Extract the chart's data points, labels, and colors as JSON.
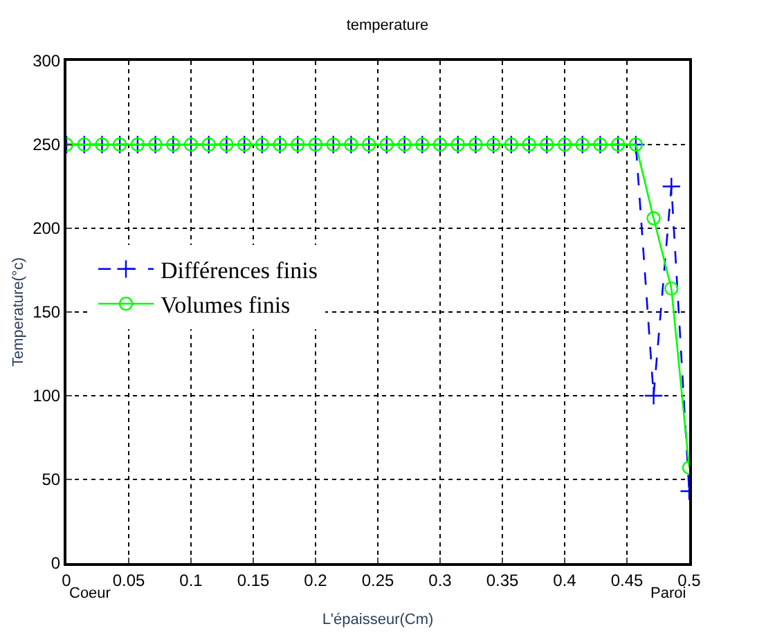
{
  "chart_data": {
    "type": "line",
    "title": "temperature",
    "xlabel": "L'épaisseur(Cm)",
    "ylabel": "Temperature(°c)",
    "x": [
      0,
      0.01429,
      0.02857,
      0.04286,
      0.05714,
      0.07143,
      0.08571,
      0.1,
      0.11429,
      0.12857,
      0.14286,
      0.15714,
      0.17143,
      0.18571,
      0.2,
      0.21429,
      0.22857,
      0.24286,
      0.25714,
      0.27143,
      0.28571,
      0.3,
      0.31429,
      0.32857,
      0.34286,
      0.35714,
      0.37143,
      0.38571,
      0.4,
      0.41429,
      0.42857,
      0.44286,
      0.45714,
      0.47143,
      0.48571,
      0.5
    ],
    "series": [
      {
        "name": "Différences finis",
        "color": "#0000ff",
        "marker": "cross",
        "line_style": "dashed",
        "values": [
          250,
          250,
          250,
          250,
          250,
          250,
          250,
          250,
          250,
          250,
          250,
          250,
          250,
          250,
          250,
          250,
          250,
          250,
          250,
          250,
          250,
          250,
          250,
          250,
          250,
          250,
          250,
          250,
          250,
          250,
          250,
          250,
          250,
          100,
          225,
          43
        ]
      },
      {
        "name": "Volumes finis",
        "color": "#00ff00",
        "marker": "circle",
        "line_style": "solid",
        "values": [
          250,
          250,
          250,
          250,
          250,
          250,
          250,
          250,
          250,
          250,
          250,
          250,
          250,
          250,
          250,
          250,
          250,
          250,
          250,
          250,
          250,
          250,
          250,
          250,
          250,
          250,
          250,
          250,
          250,
          250,
          250,
          250,
          250,
          206,
          164,
          57
        ]
      }
    ],
    "xlim": [
      0,
      0.5
    ],
    "xticks": [
      0,
      0.05,
      0.1,
      0.15,
      0.2,
      0.25,
      0.3,
      0.35,
      0.4,
      0.45,
      0.5
    ],
    "ylim": [
      0,
      300
    ],
    "yticks": [
      0,
      50,
      100,
      150,
      200,
      250,
      300
    ],
    "annotations": [
      "Coeur",
      "Paroi"
    ],
    "grid": true,
    "legend": "left"
  }
}
